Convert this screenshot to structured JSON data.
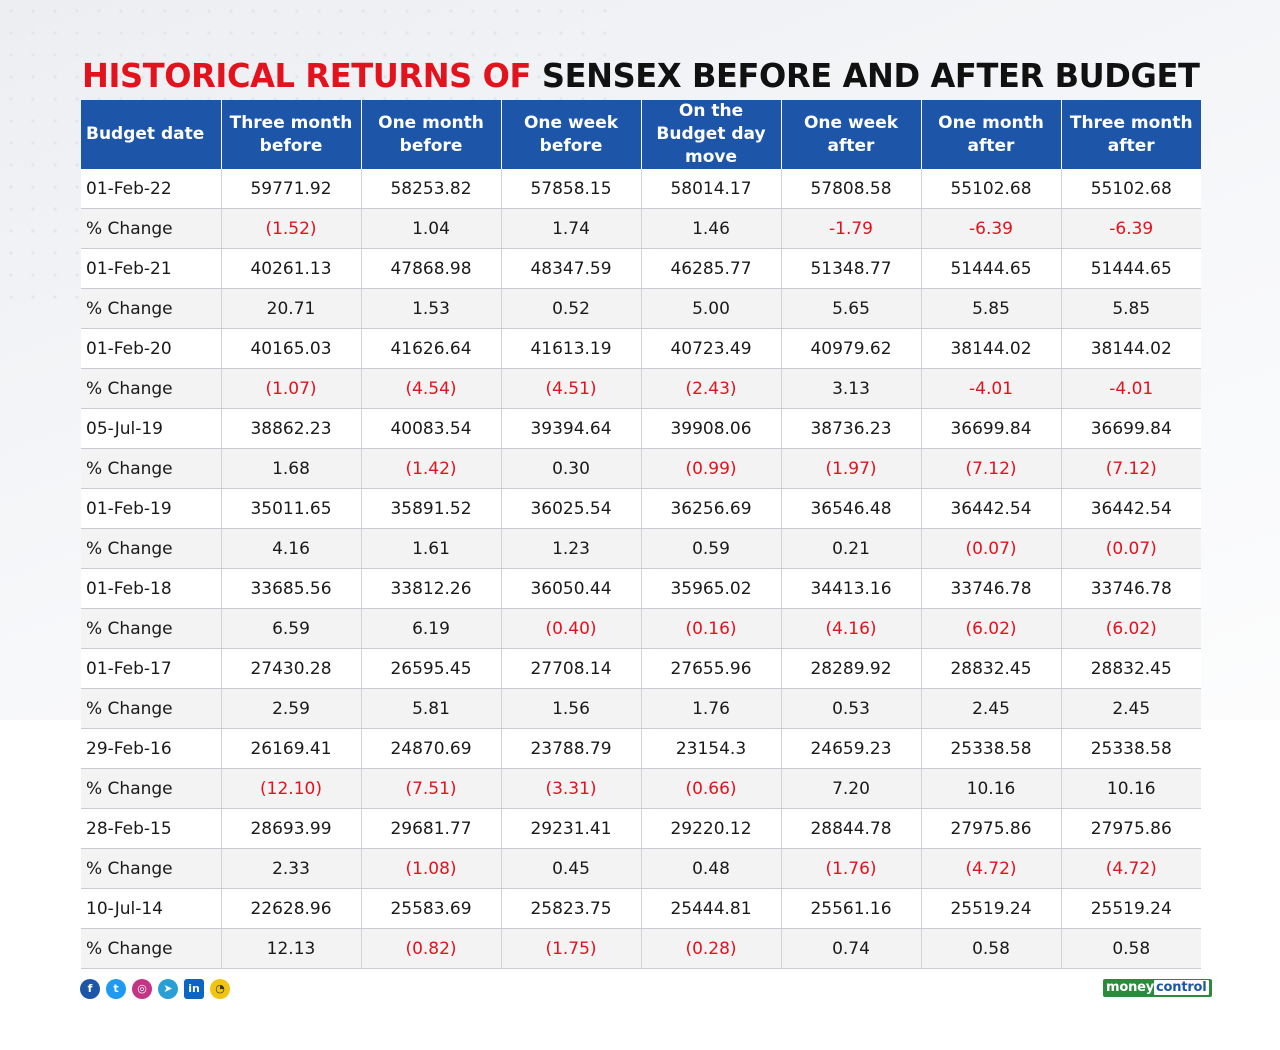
{
  "title": {
    "part1": "HISTORICAL RETURNS OF",
    "part2": "SENSEX BEFORE AND AFTER BUDGET"
  },
  "chart_data": {
    "type": "table",
    "columns": [
      "Budget date",
      "Three month before",
      "One month before",
      "One week before",
      "On the Budget day move",
      "One week after",
      "One month after",
      "Three month after"
    ],
    "rows": [
      {
        "label": "01-Feb-22",
        "kind": "val",
        "cells": [
          "59771.92",
          "58253.82",
          "57858.15",
          "58014.17",
          "57808.58",
          "55102.68",
          "55102.68"
        ]
      },
      {
        "label": "% Change",
        "kind": "pct",
        "cells": [
          "(1.52)",
          "1.04",
          "1.74",
          "1.46",
          "-1.79",
          "-6.39",
          "-6.39"
        ]
      },
      {
        "label": "01-Feb-21",
        "kind": "val",
        "cells": [
          "40261.13",
          "47868.98",
          "48347.59",
          "46285.77",
          "51348.77",
          "51444.65",
          "51444.65"
        ]
      },
      {
        "label": "% Change",
        "kind": "pct",
        "cells": [
          "20.71",
          "1.53",
          "0.52",
          "5.00",
          "5.65",
          "5.85",
          "5.85"
        ]
      },
      {
        "label": "01-Feb-20",
        "kind": "val",
        "cells": [
          "40165.03",
          "41626.64",
          "41613.19",
          "40723.49",
          "40979.62",
          "38144.02",
          "38144.02"
        ]
      },
      {
        "label": "% Change",
        "kind": "pct",
        "cells": [
          "(1.07)",
          "(4.54)",
          "(4.51)",
          "(2.43)",
          "3.13",
          "-4.01",
          "-4.01"
        ]
      },
      {
        "label": "05-Jul-19",
        "kind": "val",
        "cells": [
          "38862.23",
          "40083.54",
          "39394.64",
          "39908.06",
          "38736.23",
          "36699.84",
          "36699.84"
        ]
      },
      {
        "label": "% Change",
        "kind": "pct",
        "cells": [
          "1.68",
          "(1.42)",
          "0.30",
          "(0.99)",
          "(1.97)",
          "(7.12)",
          "(7.12)"
        ]
      },
      {
        "label": "01-Feb-19",
        "kind": "val",
        "cells": [
          "35011.65",
          "35891.52",
          "36025.54",
          "36256.69",
          "36546.48",
          "36442.54",
          "36442.54"
        ]
      },
      {
        "label": "% Change",
        "kind": "pct",
        "cells": [
          "4.16",
          "1.61",
          "1.23",
          "0.59",
          "0.21",
          "(0.07)",
          "(0.07)"
        ]
      },
      {
        "label": "01-Feb-18",
        "kind": "val",
        "cells": [
          "33685.56",
          "33812.26",
          "36050.44",
          "35965.02",
          "34413.16",
          "33746.78",
          "33746.78"
        ]
      },
      {
        "label": "% Change",
        "kind": "pct",
        "cells": [
          "6.59",
          "6.19",
          "(0.40)",
          "(0.16)",
          "(4.16)",
          "(6.02)",
          "(6.02)"
        ]
      },
      {
        "label": "01-Feb-17",
        "kind": "val",
        "cells": [
          "27430.28",
          "26595.45",
          "27708.14",
          "27655.96",
          "28289.92",
          "28832.45",
          "28832.45"
        ]
      },
      {
        "label": "% Change",
        "kind": "pct",
        "cells": [
          "2.59",
          "5.81",
          "1.56",
          "1.76",
          "0.53",
          "2.45",
          "2.45"
        ]
      },
      {
        "label": "29-Feb-16",
        "kind": "val",
        "cells": [
          "26169.41",
          "24870.69",
          "23788.79",
          "23154.3",
          "24659.23",
          "25338.58",
          "25338.58"
        ]
      },
      {
        "label": "% Change",
        "kind": "pct",
        "cells": [
          "(12.10)",
          "(7.51)",
          "(3.31)",
          "(0.66)",
          "7.20",
          "10.16",
          "10.16"
        ]
      },
      {
        "label": "28-Feb-15",
        "kind": "val",
        "cells": [
          "28693.99",
          "29681.77",
          "29231.41",
          "29220.12",
          "28844.78",
          "27975.86",
          "27975.86"
        ]
      },
      {
        "label": "% Change",
        "kind": "pct",
        "cells": [
          "2.33",
          "(1.08)",
          "0.45",
          "0.48",
          "(1.76)",
          "(4.72)",
          "(4.72)"
        ]
      },
      {
        "label": "10-Jul-14",
        "kind": "val",
        "cells": [
          "22628.96",
          "25583.69",
          "25823.75",
          "25444.81",
          "25561.16",
          "25519.24",
          "25519.24"
        ]
      },
      {
        "label": "% Change",
        "kind": "pct",
        "cells": [
          "12.13",
          "(0.82)",
          "(1.75)",
          "(0.28)",
          "0.74",
          "0.58",
          "0.58"
        ]
      }
    ]
  },
  "colors": {
    "header_bg": "#1d56a8",
    "title_red": "#e3131e",
    "negative": "#e3131e"
  },
  "footer": {
    "social_icons": [
      "facebook-icon",
      "twitter-icon",
      "instagram-icon",
      "telegram-icon",
      "linkedin-icon",
      "koo-icon"
    ],
    "logo": {
      "part1": "money",
      "part2": "control"
    }
  }
}
